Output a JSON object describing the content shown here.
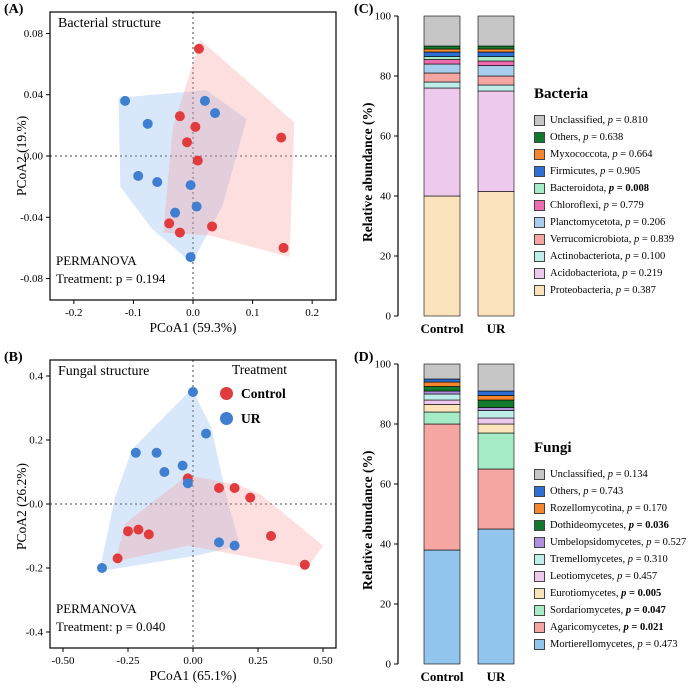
{
  "figure": {
    "background": "#ffffff"
  },
  "colors": {
    "control": "#e23b3e",
    "ur": "#3e7fd1"
  },
  "chart_data": [
    {
      "id": "A",
      "type": "scatter",
      "tag": "(A)",
      "title": "Bacterial structure",
      "xlabel": "PCoA1 (59.3%)",
      "ylabel": "PCoA2 (19.%)",
      "xlim": [
        -0.24,
        0.24
      ],
      "ylim": [
        -0.094,
        0.094
      ],
      "xticks": [
        "-0.2",
        "-0.1",
        "0.0",
        "0.1",
        "0.2"
      ],
      "yticks": [
        "-0.08",
        "-0.04",
        "0.00",
        "0.04",
        "0.08"
      ],
      "annotation": {
        "line1": "PERMANOVA",
        "line2": "Treatment: p = 0.194"
      },
      "series": [
        {
          "name": "Control",
          "color": "#e23b3e",
          "points": [
            [
              0.01,
              0.07
            ],
            [
              -0.022,
              0.026
            ],
            [
              0.004,
              0.019
            ],
            [
              -0.01,
              0.009
            ],
            [
              0.008,
              -0.003
            ],
            [
              0.148,
              0.012
            ],
            [
              -0.04,
              -0.044
            ],
            [
              -0.022,
              -0.05
            ],
            [
              0.032,
              -0.046
            ],
            [
              0.152,
              -0.06
            ]
          ]
        },
        {
          "name": "UR",
          "color": "#3e7fd1",
          "points": [
            [
              -0.114,
              0.036
            ],
            [
              -0.076,
              0.021
            ],
            [
              0.02,
              0.036
            ],
            [
              0.037,
              0.028
            ],
            [
              -0.092,
              -0.013
            ],
            [
              -0.06,
              -0.017
            ],
            [
              -0.004,
              -0.019
            ],
            [
              0.006,
              -0.033
            ],
            [
              -0.03,
              -0.037
            ],
            [
              -0.004,
              -0.066
            ]
          ]
        }
      ],
      "hulls": [
        {
          "series": "UR",
          "fill": "rgba(125,180,240,0.30)",
          "points": [
            [
              -0.125,
              0.038
            ],
            [
              0.022,
              0.043
            ],
            [
              0.09,
              0.024
            ],
            [
              0.05,
              -0.032
            ],
            [
              -0.002,
              -0.07
            ],
            [
              -0.07,
              -0.047
            ],
            [
              -0.122,
              -0.02
            ]
          ]
        },
        {
          "series": "Control",
          "fill": "rgba(247,150,150,0.30)",
          "points": [
            [
              0.012,
              0.076
            ],
            [
              0.17,
              0.022
            ],
            [
              0.162,
              -0.066
            ],
            [
              0.03,
              -0.052
            ],
            [
              -0.05,
              -0.05
            ],
            [
              -0.034,
              0.018
            ]
          ]
        }
      ]
    },
    {
      "id": "B",
      "type": "scatter",
      "tag": "(B)",
      "title": "Fungal structure",
      "xlabel": "PCoA1 (65.1%)",
      "ylabel": "PCoA2 (26.2%)",
      "xlim": [
        -0.55,
        0.55
      ],
      "ylim": [
        -0.45,
        0.45
      ],
      "xticks": [
        "-0.50",
        "-0.25",
        "0.00",
        "0.25",
        "0.50"
      ],
      "yticks": [
        "-0.4",
        "-0.2",
        "0.0",
        "0.2",
        "0.4"
      ],
      "annotation": {
        "line1": "PERMANOVA",
        "line2": "Treatment: p = 0.040"
      },
      "legend": {
        "title": "Treatment",
        "items": [
          {
            "label": "Control",
            "color": "#e23b3e"
          },
          {
            "label": "UR",
            "color": "#3e7fd1"
          }
        ]
      },
      "series": [
        {
          "name": "Control",
          "color": "#e23b3e",
          "points": [
            [
              -0.02,
              0.08
            ],
            [
              0.1,
              0.05
            ],
            [
              0.16,
              0.05
            ],
            [
              0.22,
              0.02
            ],
            [
              -0.21,
              -0.08
            ],
            [
              -0.17,
              -0.095
            ],
            [
              -0.25,
              -0.085
            ],
            [
              -0.29,
              -0.17
            ],
            [
              0.3,
              -0.1
            ],
            [
              0.43,
              -0.19
            ]
          ]
        },
        {
          "name": "UR",
          "color": "#3e7fd1",
          "points": [
            [
              0.0,
              0.35
            ],
            [
              0.05,
              0.22
            ],
            [
              -0.22,
              0.16
            ],
            [
              -0.14,
              0.16
            ],
            [
              -0.11,
              0.1
            ],
            [
              -0.04,
              0.12
            ],
            [
              -0.02,
              0.065
            ],
            [
              -0.35,
              -0.2
            ],
            [
              0.1,
              -0.12
            ],
            [
              0.16,
              -0.13
            ]
          ]
        }
      ],
      "hulls": [
        {
          "series": "UR",
          "fill": "rgba(125,180,240,0.30)",
          "points": [
            [
              -0.005,
              0.36
            ],
            [
              0.07,
              0.24
            ],
            [
              0.13,
              0.02
            ],
            [
              0.18,
              -0.13
            ],
            [
              0.02,
              -0.16
            ],
            [
              -0.36,
              -0.21
            ],
            [
              -0.3,
              0.02
            ],
            [
              -0.235,
              0.17
            ]
          ]
        },
        {
          "series": "Control",
          "fill": "rgba(247,150,150,0.30)",
          "points": [
            [
              -0.02,
              0.09
            ],
            [
              0.17,
              0.06
            ],
            [
              0.26,
              0.03
            ],
            [
              0.5,
              -0.13
            ],
            [
              0.44,
              -0.2
            ],
            [
              -0.02,
              -0.13
            ],
            [
              -0.3,
              -0.18
            ],
            [
              -0.26,
              -0.06
            ]
          ]
        }
      ]
    },
    {
      "id": "C",
      "type": "bar",
      "tag": "(C)",
      "group_title": "Bacteria",
      "ylabel": "Relative abundance (%)",
      "ylim": [
        0,
        100
      ],
      "yticks": [
        "0",
        "20",
        "40",
        "60",
        "80",
        "100"
      ],
      "categories": [
        "Control",
        "UR"
      ],
      "series": [
        {
          "name": "Proteobacteria",
          "color": "#fbe4bb",
          "p": "0.387",
          "significant": false,
          "values": [
            40.0,
            41.5
          ]
        },
        {
          "name": "Acidobacteriota",
          "color": "#eec9ee",
          "p": "0.219",
          "significant": false,
          "values": [
            36.0,
            33.5
          ]
        },
        {
          "name": "Actinobacteriota",
          "color": "#bfeeea",
          "p": "0.100",
          "significant": false,
          "values": [
            2.0,
            2.0
          ]
        },
        {
          "name": "Verrucomicrobiota",
          "color": "#f5a6a2",
          "p": "0.839",
          "significant": false,
          "values": [
            3.0,
            3.0
          ]
        },
        {
          "name": "Planctomycetota",
          "color": "#a9cdec",
          "p": "0.206",
          "significant": false,
          "values": [
            3.0,
            3.5
          ]
        },
        {
          "name": "Chloroflexi",
          "color": "#f06ab0",
          "p": "0.779",
          "significant": false,
          "values": [
            1.5,
            1.5
          ]
        },
        {
          "name": "Bacteroidota",
          "color": "#a5ebc5",
          "p": "0.008",
          "significant": true,
          "values": [
            1.0,
            1.5
          ]
        },
        {
          "name": "Firmicutes",
          "color": "#2e6fd6",
          "p": "0.905",
          "significant": false,
          "values": [
            1.5,
            1.5
          ]
        },
        {
          "name": "Myxococcota",
          "color": "#f5862c",
          "p": "0.664",
          "significant": false,
          "values": [
            1.0,
            1.0
          ]
        },
        {
          "name": "Others",
          "color": "#127a2c",
          "p": "0.638",
          "significant": false,
          "values": [
            1.0,
            1.0
          ]
        },
        {
          "name": "Unclassified",
          "color": "#c6c6c6",
          "p": "0.810",
          "significant": false,
          "values": [
            10.0,
            10.0
          ]
        }
      ]
    },
    {
      "id": "D",
      "type": "bar",
      "tag": "(D)",
      "group_title": "Fungi",
      "ylabel": "Relative abundance (%)",
      "ylim": [
        0,
        100
      ],
      "yticks": [
        "0",
        "20",
        "40",
        "60",
        "80",
        "100"
      ],
      "categories": [
        "Control",
        "UR"
      ],
      "series": [
        {
          "name": "Mortierellomycetes",
          "color": "#92c5ed",
          "p": "0.473",
          "significant": false,
          "values": [
            38.0,
            45.0
          ]
        },
        {
          "name": "Agaricomycetes",
          "color": "#f5a6a2",
          "p": "0.021",
          "significant": true,
          "values": [
            42.0,
            20.0
          ]
        },
        {
          "name": "Sordariomycetes",
          "color": "#a5ebc5",
          "p": "0.047",
          "significant": true,
          "values": [
            4.0,
            12.0
          ]
        },
        {
          "name": "Eurotiomycetes",
          "color": "#fbe4bb",
          "p": "0.005",
          "significant": true,
          "values": [
            2.5,
            3.0
          ]
        },
        {
          "name": "Leotiomycetes",
          "color": "#eec9ee",
          "p": "0.457",
          "significant": false,
          "values": [
            1.5,
            2.0
          ]
        },
        {
          "name": "Tremellomycetes",
          "color": "#bfeeea",
          "p": "0.310",
          "significant": false,
          "values": [
            2.0,
            2.5
          ]
        },
        {
          "name": "Umbelopsidomycetes",
          "color": "#b08ee0",
          "p": "0.527",
          "significant": false,
          "values": [
            1.0,
            1.0
          ]
        },
        {
          "name": "Dothideomycetes",
          "color": "#127a2c",
          "p": "0.036",
          "significant": true,
          "values": [
            1.5,
            2.5
          ]
        },
        {
          "name": "Rozellomycotina",
          "color": "#f5862c",
          "p": "0.170",
          "significant": false,
          "values": [
            1.5,
            1.5
          ]
        },
        {
          "name": "Others",
          "color": "#2e6fd6",
          "p": "0.743",
          "significant": false,
          "values": [
            1.0,
            1.5
          ]
        },
        {
          "name": "Unclassified",
          "color": "#c6c6c6",
          "p": "0.134",
          "significant": false,
          "values": [
            5.0,
            9.0
          ]
        }
      ]
    }
  ]
}
